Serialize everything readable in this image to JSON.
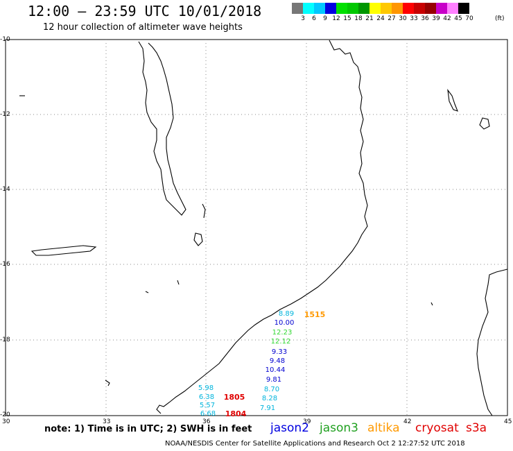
{
  "header": {
    "title": "12:00 – 23:59 UTC 10/01/2018",
    "subtitle": "12 hour collection of altimeter wave heights"
  },
  "legend": {
    "colors": [
      "#777777",
      "#00ffff",
      "#00c8ff",
      "#0000e0",
      "#00e000",
      "#00c800",
      "#009600",
      "#ffff00",
      "#ffc800",
      "#ff9600",
      "#ff0000",
      "#c80000",
      "#960000",
      "#c800c8",
      "#ff80ff",
      "#000000"
    ],
    "labels": [
      "3",
      "6",
      "9",
      "12",
      "15",
      "18",
      "21",
      "24",
      "27",
      "30",
      "33",
      "36",
      "39",
      "42",
      "45",
      "70"
    ],
    "unit": "(ft)"
  },
  "axes": {
    "y_ticks": [
      "-10",
      "-12",
      "-14",
      "-16",
      "-18",
      "-20"
    ],
    "x_ticks": [
      "30",
      "33",
      "36",
      "39",
      "42",
      "45"
    ]
  },
  "observations": [
    {
      "text": "8.89",
      "color": "#00b4dc",
      "pos": "a"
    },
    {
      "text": "10.00",
      "color": "#0000d0",
      "pos": "b"
    },
    {
      "text": "12.23",
      "color": "#30d830",
      "pos": "c"
    },
    {
      "text": "12.12",
      "color": "#30d830",
      "pos": "d"
    },
    {
      "text": "9.33",
      "color": "#0000d0",
      "pos": "e"
    },
    {
      "text": "9.48",
      "color": "#0000d0",
      "pos": "f"
    },
    {
      "text": "10.44",
      "color": "#0000d0",
      "pos": "g"
    },
    {
      "text": "9.81",
      "color": "#0000d0",
      "pos": "h"
    },
    {
      "text": "8.70",
      "color": "#00b4dc",
      "pos": "i"
    },
    {
      "text": "8.28",
      "color": "#00b4dc",
      "pos": "j"
    },
    {
      "text": "7.91",
      "color": "#00b4dc",
      "pos": "k"
    },
    {
      "text": "5.98",
      "color": "#00b4dc",
      "pos": "l"
    },
    {
      "text": "6.38",
      "color": "#00b4dc",
      "pos": "m"
    },
    {
      "text": "5.57",
      "color": "#00b4dc",
      "pos": "n"
    },
    {
      "text": "6.68",
      "color": "#00b4dc",
      "pos": "o"
    }
  ],
  "passes": [
    {
      "text": "1515",
      "color": "#ff9900",
      "pos": "p1"
    },
    {
      "text": "1805",
      "color": "#e00000",
      "pos": "p2"
    },
    {
      "text": "1804",
      "color": "#e00000",
      "pos": "p3"
    }
  ],
  "footer": {
    "note": "note: 1) Time is in UTC; 2) SWH is in feet",
    "satellites": [
      {
        "name": "jason2",
        "color": "#0000e0"
      },
      {
        "name": "jason3",
        "color": "#20a020"
      },
      {
        "name": "altika",
        "color": "#ff9900"
      },
      {
        "name": "cryosat",
        "color": "#e00000"
      },
      {
        "name": "s3a",
        "color": "#e00000"
      }
    ],
    "credit": "NOAA/NESDIS Center for Satellite Applications and Research    Oct  2 12:27:52 UTC 2018"
  }
}
